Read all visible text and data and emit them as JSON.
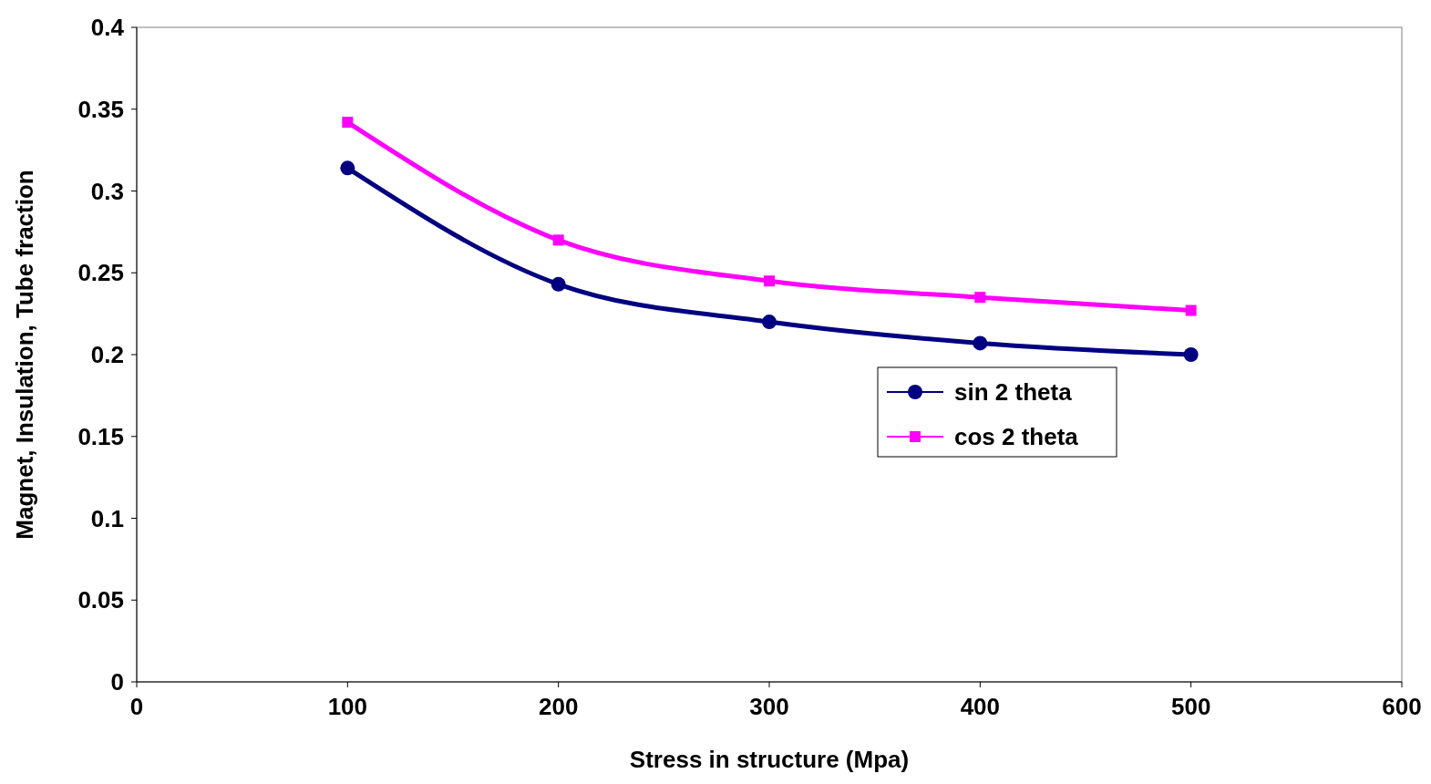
{
  "chart_data": {
    "type": "line",
    "xlabel": "Stress in structure (Mpa)",
    "ylabel": "Magnet, Insulation, Tube fraction",
    "x": [
      100,
      200,
      300,
      400,
      500
    ],
    "series": [
      {
        "name": "sin 2 theta",
        "color": "#000080",
        "values": [
          0.314,
          0.243,
          0.22,
          0.207,
          0.2
        ],
        "marker": "circle"
      },
      {
        "name": "cos 2 theta",
        "color": "#ff00ff",
        "values": [
          0.342,
          0.27,
          0.245,
          0.235,
          0.227
        ],
        "marker": "square"
      }
    ],
    "xlim": [
      0,
      600
    ],
    "xticks": [
      0,
      100,
      200,
      300,
      400,
      500,
      600
    ],
    "ylim": [
      0,
      0.4
    ],
    "yticks": [
      0,
      0.05,
      0.1,
      0.15,
      0.2,
      0.25,
      0.3,
      0.35,
      0.4
    ],
    "grid": false,
    "legend": "right",
    "line_style": "solid"
  }
}
